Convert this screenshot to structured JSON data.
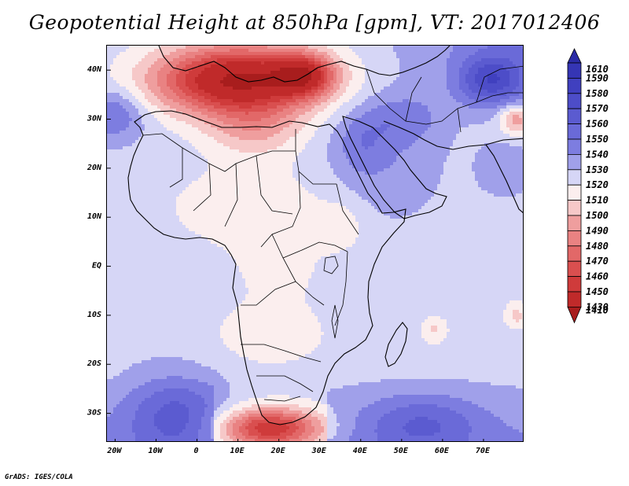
{
  "title": "Geopotential Height at 850hPa [gpm], VT: 2017012406",
  "credit": "GrADS: IGES/COLA",
  "map": {
    "lat_range": [
      -36,
      45
    ],
    "lon_range": [
      -22,
      80
    ],
    "lat_ticks": [
      {
        "v": 40,
        "label": "40N"
      },
      {
        "v": 30,
        "label": "30N"
      },
      {
        "v": 20,
        "label": "20N"
      },
      {
        "v": 10,
        "label": "10N"
      },
      {
        "v": 0,
        "label": "EQ"
      },
      {
        "v": -10,
        "label": "10S"
      },
      {
        "v": -20,
        "label": "20S"
      },
      {
        "v": -30,
        "label": "30S"
      }
    ],
    "lon_ticks": [
      {
        "v": -20,
        "label": "20W"
      },
      {
        "v": -10,
        "label": "10W"
      },
      {
        "v": 0,
        "label": "0"
      },
      {
        "v": 10,
        "label": "10E"
      },
      {
        "v": 20,
        "label": "20E"
      },
      {
        "v": 30,
        "label": "30E"
      },
      {
        "v": 40,
        "label": "40E"
      },
      {
        "v": 50,
        "label": "50E"
      },
      {
        "v": 60,
        "label": "60E"
      },
      {
        "v": 70,
        "label": "70E"
      }
    ]
  },
  "colorbar": {
    "levels": [
      {
        "label": "1610",
        "color": "#2b2ba6"
      },
      {
        "label": "1590",
        "color": "#3535b4"
      },
      {
        "label": "1580",
        "color": "#4040bf"
      },
      {
        "label": "1570",
        "color": "#4d4dc8"
      },
      {
        "label": "1560",
        "color": "#5b5bd0"
      },
      {
        "label": "1550",
        "color": "#6a6ad8"
      },
      {
        "label": "1540",
        "color": "#7d7de0"
      },
      {
        "label": "1530",
        "color": "#a0a0ea"
      },
      {
        "label": "1520",
        "color": "#d6d6f6"
      },
      {
        "label": "1510",
        "color": "#fbeeee"
      },
      {
        "label": "1500",
        "color": "#f6c8c8"
      },
      {
        "label": "1490",
        "color": "#ef9e9e"
      },
      {
        "label": "1480",
        "color": "#e98282"
      },
      {
        "label": "1470",
        "color": "#e26868"
      },
      {
        "label": "1460",
        "color": "#d94f4f"
      },
      {
        "label": "1450",
        "color": "#cf3b3b"
      },
      {
        "label": "1430",
        "color": "#c02a2a"
      },
      {
        "label": "1410",
        "color": "#a81d1d"
      }
    ]
  },
  "field": {
    "background": 1527,
    "features": [
      {
        "lon": 10,
        "lat": 38,
        "rx": 20,
        "ry": 7,
        "d": -100
      },
      {
        "lon": 26,
        "lat": 39,
        "rx": 7,
        "ry": 4,
        "d": -60
      },
      {
        "lon": 14,
        "lat": 28,
        "rx": 12,
        "ry": 6,
        "d": -25
      },
      {
        "lon": 13,
        "lat": 12,
        "rx": 22,
        "ry": 9,
        "d": -14
      },
      {
        "lon": 20,
        "lat": -1,
        "rx": 12,
        "ry": 7,
        "d": -9
      },
      {
        "lon": 18,
        "lat": -14,
        "rx": 15,
        "ry": 7,
        "d": -14
      },
      {
        "lon": 18,
        "lat": -33,
        "rx": 12,
        "ry": 4,
        "d": -70
      },
      {
        "lon": 58,
        "lat": -13,
        "rx": 3.5,
        "ry": 3,
        "d": -18
      },
      {
        "lon": 78,
        "lat": -10,
        "rx": 3,
        "ry": 3,
        "d": -20
      },
      {
        "lon": 72,
        "lat": 38,
        "rx": 8,
        "ry": 5,
        "d": 45
      },
      {
        "lon": 78,
        "lat": 30,
        "rx": 4,
        "ry": 3,
        "d": -35
      },
      {
        "lon": -20,
        "lat": 31,
        "rx": 7,
        "ry": 5,
        "d": 25
      },
      {
        "lon": -5,
        "lat": -30,
        "rx": 12,
        "ry": 8,
        "d": 30
      },
      {
        "lon": 55,
        "lat": -32,
        "rx": 14,
        "ry": 6,
        "d": 25
      },
      {
        "lon": 45,
        "lat": 22,
        "rx": 13,
        "ry": 12,
        "d": 12
      },
      {
        "lon": 75,
        "lat": 20,
        "rx": 6,
        "ry": 5,
        "d": 12
      },
      {
        "lon": 50,
        "lat": 30,
        "rx": 10,
        "ry": 5,
        "d": 15
      },
      {
        "lon": 35,
        "lat": 8,
        "rx": 6,
        "ry": 5,
        "d": -12
      },
      {
        "lon": 40,
        "lat": 25,
        "rx": 6,
        "ry": 6,
        "d": 12
      }
    ]
  }
}
